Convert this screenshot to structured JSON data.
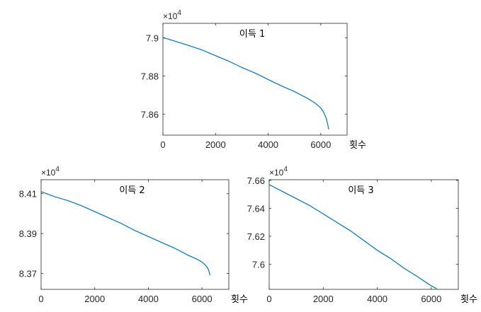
{
  "chart_data": [
    {
      "type": "line",
      "title": "이득 1",
      "xlabel": "횟수",
      "ylabel": "",
      "y_multiplier": "×10",
      "y_exponent": "4",
      "xlim": [
        0,
        7000
      ],
      "ylim": [
        78.49,
        79.075
      ],
      "xticks": [
        0,
        2000,
        4000,
        6000
      ],
      "xtick_labels": [
        "0",
        "2000",
        "4000",
        "6000"
      ],
      "yticks": [
        78.6,
        78.8,
        79.0
      ],
      "ytick_labels": [
        "7.86",
        "7.88",
        "7.9"
      ],
      "series": [
        {
          "color": "#0072BD",
          "x": [
            0,
            200,
            500,
            1000,
            1500,
            2000,
            2500,
            3000,
            3500,
            4000,
            4500,
            5000,
            5500,
            5800,
            6000,
            6100,
            6200,
            6250,
            6300
          ],
          "y": [
            79.0,
            78.993,
            78.98,
            78.958,
            78.935,
            78.906,
            78.877,
            78.844,
            78.815,
            78.781,
            78.748,
            78.718,
            78.682,
            78.656,
            78.632,
            78.612,
            78.58,
            78.555,
            78.52
          ]
        }
      ]
    },
    {
      "type": "line",
      "title": "이득 2",
      "xlabel": "횟수",
      "ylabel": "",
      "y_multiplier": "×10",
      "y_exponent": "4",
      "xlim": [
        0,
        7000
      ],
      "ylim": [
        83.62,
        84.17
      ],
      "xticks": [
        0,
        2000,
        4000,
        6000
      ],
      "xtick_labels": [
        "0",
        "2000",
        "4000",
        "6000"
      ],
      "yticks": [
        83.7,
        83.9,
        84.1
      ],
      "ytick_labels": [
        "8.37",
        "8.39",
        "8.41"
      ],
      "series": [
        {
          "color": "#0072BD",
          "x": [
            0,
            200,
            500,
            1000,
            1500,
            2000,
            2500,
            3000,
            3500,
            4000,
            4500,
            5000,
            5500,
            5800,
            6000,
            6100,
            6200,
            6250,
            6300
          ],
          "y": [
            84.11,
            84.1,
            84.085,
            84.065,
            84.04,
            84.01,
            83.98,
            83.95,
            83.915,
            83.885,
            83.855,
            83.825,
            83.79,
            83.772,
            83.757,
            83.745,
            83.73,
            83.715,
            83.69
          ]
        }
      ]
    },
    {
      "type": "line",
      "title": "이득 3",
      "xlabel": "횟수",
      "ylabel": "",
      "y_multiplier": "×10",
      "y_exponent": "4",
      "xlim": [
        0,
        7000
      ],
      "ylim": [
        75.82,
        76.605
      ],
      "xticks": [
        0,
        2000,
        4000,
        6000
      ],
      "xtick_labels": [
        "0",
        "2000",
        "4000",
        "6000"
      ],
      "yticks": [
        76.0,
        76.2,
        76.4,
        76.6
      ],
      "ytick_labels": [
        "7.6",
        "7.62",
        "7.64",
        "7.66"
      ],
      "series": [
        {
          "color": "#0072BD",
          "x": [
            0,
            200,
            500,
            1000,
            1500,
            2000,
            2500,
            3000,
            3500,
            4000,
            4500,
            5000,
            5500,
            5800,
            6000,
            6100,
            6200
          ],
          "y": [
            76.57,
            76.55,
            76.52,
            76.47,
            76.42,
            76.36,
            76.3,
            76.24,
            76.17,
            76.1,
            76.04,
            75.97,
            75.91,
            75.87,
            75.845,
            75.835,
            75.825
          ]
        }
      ]
    }
  ]
}
